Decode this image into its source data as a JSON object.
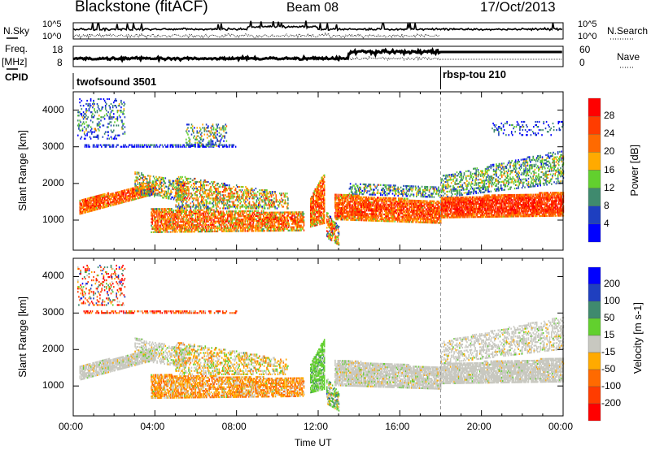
{
  "header": {
    "station": "Blackstone (fitACF)",
    "beam": "Beam 08",
    "date": "17/Oct/2013"
  },
  "noise_panel": {
    "left_label": "N.Sky",
    "right_label": "N.Search",
    "left_ticks": [
      "10^5",
      "10^0"
    ],
    "right_ticks": [
      "10^5",
      "10^0"
    ]
  },
  "freq_panel": {
    "left_label_1": "Freq.",
    "left_label_2": "[MHz]",
    "right_label": "Nave",
    "left_ticks": [
      "18",
      "8"
    ],
    "right_ticks": [
      "60",
      "0"
    ]
  },
  "cpid": {
    "label": "CPID",
    "programs": [
      {
        "name": "twofsound 3501",
        "start_hour": 0
      },
      {
        "name": "rbsp-tou 210",
        "start_hour": 18
      }
    ]
  },
  "colors": {
    "power": [
      "#0000ff",
      "#1e3fc0",
      "#3f8a6e",
      "#62d02e",
      "#ffaa00",
      "#ff6a00",
      "#ff3c00",
      "#ff0000"
    ],
    "velocity": [
      "#0000ff",
      "#1f3fbf",
      "#3f8a6e",
      "#62d02e",
      "#c8c8c0",
      "#ffaa00",
      "#ff6a00",
      "#ff3c00",
      "#ff0000"
    ]
  },
  "chart_data": [
    {
      "type": "heatmap",
      "name": "power",
      "ylabel": "Slant Range [km]",
      "xlabel": "Time UT",
      "xlim": [
        0,
        24
      ],
      "ylim": [
        180,
        4500
      ],
      "yticks": [
        "1000",
        "2000",
        "3000",
        "4000"
      ],
      "xticks": [
        "00:00",
        "04:00",
        "08:00",
        "12:00",
        "16:00",
        "20:00",
        "00:00"
      ],
      "colorbar": {
        "label": "Power [dB]",
        "ticks": [
          "28",
          "24",
          "20",
          "16",
          "12",
          "8",
          "4"
        ],
        "range": [
          0,
          32
        ]
      },
      "echo_regions": [
        {
          "t": [
            0.3,
            4.0
          ],
          "lo": [
            1150,
            1700
          ],
          "hi": [
            1550,
            2000
          ],
          "v": 25,
          "sd": 4,
          "d": 0.8
        },
        {
          "t": [
            3.0,
            5.5
          ],
          "lo": [
            1700,
            1500
          ],
          "hi": [
            2300,
            2000
          ],
          "v": 16,
          "sd": 6,
          "d": 0.5
        },
        {
          "t": [
            0.2,
            2.5
          ],
          "lo": [
            3200,
            3200
          ],
          "hi": [
            4300,
            4300
          ],
          "v": 9,
          "sd": 5,
          "d": 0.2
        },
        {
          "t": [
            0.5,
            8.0
          ],
          "lo": [
            2980,
            2980
          ],
          "hi": [
            3040,
            3040
          ],
          "v": 6,
          "sd": 3,
          "d": 0.5
        },
        {
          "t": [
            5.5,
            7.5
          ],
          "lo": [
            3000,
            3000
          ],
          "hi": [
            3600,
            3600
          ],
          "v": 12,
          "sd": 5,
          "d": 0.3
        },
        {
          "t": [
            3.8,
            11.3
          ],
          "lo": [
            650,
            700
          ],
          "hi": [
            1300,
            1200
          ],
          "v": 23,
          "sd": 5,
          "d": 0.7
        },
        {
          "t": [
            5.0,
            10.5
          ],
          "lo": [
            1300,
            1300
          ],
          "hi": [
            2200,
            1700
          ],
          "v": 18,
          "sd": 6,
          "d": 0.45
        },
        {
          "t": [
            11.6,
            12.3
          ],
          "lo": [
            800,
            900
          ],
          "hi": [
            1600,
            2300
          ],
          "v": 24,
          "sd": 5,
          "d": 0.8
        },
        {
          "t": [
            12.4,
            13.0
          ],
          "lo": [
            500,
            300
          ],
          "hi": [
            1200,
            800
          ],
          "v": 20,
          "sd": 6,
          "d": 0.6
        },
        {
          "t": [
            12.8,
            18.0
          ],
          "lo": [
            1000,
            900
          ],
          "hi": [
            1700,
            1500
          ],
          "v": 25,
          "sd": 4,
          "d": 0.8
        },
        {
          "t": [
            13.5,
            18.0
          ],
          "lo": [
            1700,
            1600
          ],
          "hi": [
            2000,
            1900
          ],
          "v": 12,
          "sd": 5,
          "d": 0.4
        },
        {
          "t": [
            18.0,
            24.0
          ],
          "lo": [
            1050,
            1100
          ],
          "hi": [
            1600,
            1750
          ],
          "v": 27,
          "sd": 3,
          "d": 0.85
        },
        {
          "t": [
            18.0,
            24.0
          ],
          "lo": [
            1600,
            2000
          ],
          "hi": [
            2200,
            2900
          ],
          "v": 13,
          "sd": 4,
          "d": 0.4
        },
        {
          "t": [
            20.5,
            24.0
          ],
          "lo": [
            3300,
            3300
          ],
          "hi": [
            3700,
            3700
          ],
          "v": 7,
          "sd": 4,
          "d": 0.15
        }
      ]
    },
    {
      "type": "heatmap",
      "name": "velocity",
      "ylabel": "Slant Range [km]",
      "xlabel": "Time UT",
      "xlim": [
        0,
        24
      ],
      "ylim": [
        180,
        4500
      ],
      "yticks": [
        "1000",
        "2000",
        "3000",
        "4000"
      ],
      "xticks": [
        "00:00",
        "04:00",
        "08:00",
        "12:00",
        "16:00",
        "20:00",
        "00:00"
      ],
      "colorbar": {
        "label": "Velocity [m s-1]",
        "ticks": [
          "200",
          "100",
          "50",
          "15",
          "-15",
          "-50",
          "-100",
          "-200"
        ],
        "range": [
          -300,
          300
        ]
      },
      "echo_regions": [
        {
          "t": [
            0.3,
            4.0
          ],
          "lo": [
            1150,
            1700
          ],
          "hi": [
            1550,
            2000
          ],
          "v": 0,
          "sd": 10,
          "d": 0.8
        },
        {
          "t": [
            3.0,
            5.5
          ],
          "lo": [
            1700,
            1500
          ],
          "hi": [
            2300,
            2000
          ],
          "v": 0,
          "sd": 12,
          "d": 0.5
        },
        {
          "t": [
            0.2,
            2.5
          ],
          "lo": [
            3200,
            3200
          ],
          "hi": [
            4300,
            4300
          ],
          "v": -60,
          "sd": 150,
          "d": 0.2
        },
        {
          "t": [
            0.5,
            8.0
          ],
          "lo": [
            2980,
            2980
          ],
          "hi": [
            3040,
            3040
          ],
          "v": -150,
          "sd": 100,
          "d": 0.5
        },
        {
          "t": [
            3.8,
            11.3
          ],
          "lo": [
            650,
            700
          ],
          "hi": [
            1300,
            1200
          ],
          "v": -40,
          "sd": 30,
          "d": 0.7
        },
        {
          "t": [
            5.0,
            10.5
          ],
          "lo": [
            1300,
            1300
          ],
          "hi": [
            2200,
            1700
          ],
          "v": -10,
          "sd": 30,
          "d": 0.45
        },
        {
          "t": [
            11.6,
            12.3
          ],
          "lo": [
            800,
            900
          ],
          "hi": [
            1600,
            2300
          ],
          "v": 30,
          "sd": 15,
          "d": 0.8
        },
        {
          "t": [
            12.4,
            13.0
          ],
          "lo": [
            500,
            300
          ],
          "hi": [
            1200,
            800
          ],
          "v": 20,
          "sd": 40,
          "d": 0.6
        },
        {
          "t": [
            12.8,
            18.0
          ],
          "lo": [
            1000,
            900
          ],
          "hi": [
            1700,
            1500
          ],
          "v": 0,
          "sd": 10,
          "d": 0.8
        },
        {
          "t": [
            18.0,
            24.0
          ],
          "lo": [
            1050,
            1100
          ],
          "hi": [
            1600,
            1750
          ],
          "v": 0,
          "sd": 8,
          "d": 0.85
        },
        {
          "t": [
            18.0,
            24.0
          ],
          "lo": [
            1600,
            2000
          ],
          "hi": [
            2200,
            2900
          ],
          "v": 0,
          "sd": 10,
          "d": 0.4
        }
      ]
    }
  ]
}
